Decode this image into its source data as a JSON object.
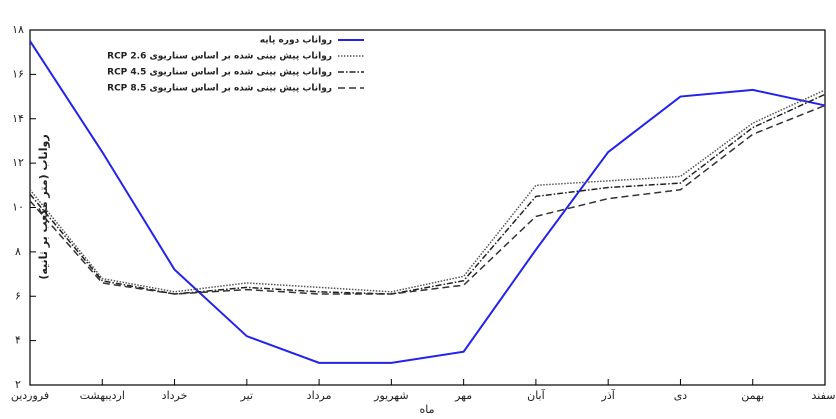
{
  "chart_data": {
    "type": "line",
    "x_label": "ماه",
    "y_label": "رواناب (متر مکعب بر ثانیه)",
    "categories": [
      "فروردین",
      "اردیبهشت",
      "خرداد",
      "تیر",
      "مرداد",
      "شهریور",
      "مهر",
      "آبان",
      "آذر",
      "دی",
      "بهمن",
      "اسفند"
    ],
    "series": [
      {
        "name": "رواناب دوره پایه",
        "color": "#2222ee",
        "dash": "none",
        "width": 2,
        "values": [
          17.5,
          12.5,
          7.2,
          4.2,
          3.0,
          3.0,
          3.5,
          8.1,
          12.5,
          15.0,
          15.3,
          14.6
        ]
      },
      {
        "name": "رواناب پیش بینی شده بر اساس سناریوی RCP 2.6",
        "color": "#555555",
        "dash": "1.5,1.5",
        "width": 1.5,
        "values": [
          10.8,
          6.8,
          6.2,
          6.6,
          6.4,
          6.2,
          6.9,
          11.0,
          11.2,
          11.4,
          13.8,
          15.3
        ]
      },
      {
        "name": "رواناب پیش بینی شده بر اساس سناریوی RCP 4.5",
        "color": "#222222",
        "dash": "6,2,1.5,2",
        "width": 1.5,
        "values": [
          10.6,
          6.7,
          6.1,
          6.4,
          6.2,
          6.1,
          6.7,
          10.5,
          10.9,
          11.1,
          13.6,
          15.1
        ]
      },
      {
        "name": "رواناب پیش بینی شده بر اساس سناریوی RCP 8.5",
        "color": "#333333",
        "dash": "7,4",
        "width": 1.5,
        "values": [
          10.3,
          6.6,
          6.1,
          6.3,
          6.1,
          6.1,
          6.5,
          9.6,
          10.4,
          10.8,
          13.3,
          14.6
        ]
      }
    ],
    "ylim": [
      2,
      18
    ],
    "yticks": [
      {
        "value": 2,
        "label": "۲"
      },
      {
        "value": 4,
        "label": "۴"
      },
      {
        "value": 6,
        "label": "۶"
      },
      {
        "value": 8,
        "label": "۸"
      },
      {
        "value": 10,
        "label": "۱۰"
      },
      {
        "value": 12,
        "label": "۱۲"
      },
      {
        "value": 14,
        "label": "۱۴"
      },
      {
        "value": 16,
        "label": "۱۶"
      },
      {
        "value": 18,
        "label": "۱۸"
      }
    ]
  }
}
